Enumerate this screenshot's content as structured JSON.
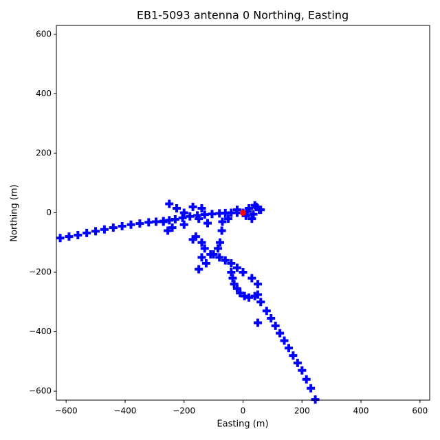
{
  "chart_data": {
    "type": "scatter",
    "title": "EB1-5093 antenna 0 Northing, Easting",
    "x_label": "Easting (m)",
    "y_label": "Northing (m)",
    "xlim": [
      -633,
      633
    ],
    "ylim": [
      -630,
      630
    ],
    "xticks": [
      {
        "value": -600,
        "label": "−600"
      },
      {
        "value": -400,
        "label": "−400"
      },
      {
        "value": -200,
        "label": "−200"
      },
      0,
      200,
      400,
      600
    ],
    "yticks": [
      {
        "value": -600,
        "label": "−600"
      },
      {
        "value": -400,
        "label": "−400"
      },
      {
        "value": -200,
        "label": "−200"
      },
      0,
      200,
      400,
      600
    ],
    "grid": false,
    "series": [
      {
        "color": "#0000ff",
        "marker": "+",
        "x": [
          -620,
          -590,
          -560,
          -530,
          -500,
          -470,
          -440,
          -410,
          -380,
          -350,
          -320,
          -295,
          -270,
          -250,
          -230,
          -205,
          -180,
          -155,
          -130,
          -105,
          -80,
          -60,
          -40,
          -20,
          0,
          20,
          40,
          55,
          30,
          10,
          -20,
          35,
          45,
          15,
          -250,
          -225,
          -200,
          -170,
          -140,
          -150,
          -120,
          -200,
          -240,
          -255,
          -270,
          -70,
          -72,
          -78,
          -85,
          -100,
          -125,
          -150,
          -140,
          -130,
          -170,
          -160,
          -140,
          -110,
          -80,
          -60,
          -40,
          -20,
          0,
          30,
          50,
          -40,
          -35,
          -30,
          -20,
          -10,
          5,
          20,
          40,
          50,
          60,
          80,
          95,
          110,
          125,
          140,
          155,
          170,
          185,
          200,
          215,
          230,
          245,
          50,
          -50,
          60
        ],
        "y": [
          -85,
          -80,
          -75,
          -68,
          -62,
          -56,
          -50,
          -45,
          -40,
          -36,
          -32,
          -30,
          -28,
          -25,
          -22,
          -17,
          -12,
          -9,
          -6,
          -4,
          -2,
          -1,
          0,
          0,
          0,
          15,
          25,
          10,
          -20,
          -10,
          10,
          -5,
          20,
          5,
          30,
          15,
          0,
          20,
          15,
          -20,
          -35,
          -40,
          -50,
          -60,
          -30,
          -30,
          -60,
          -100,
          -120,
          -140,
          -170,
          -190,
          -150,
          -120,
          -90,
          -80,
          -100,
          -140,
          -150,
          -160,
          -170,
          -185,
          -200,
          -220,
          -240,
          -200,
          -220,
          -240,
          -255,
          -270,
          -280,
          -285,
          -280,
          -275,
          -300,
          -330,
          -355,
          -380,
          -405,
          -430,
          -455,
          -480,
          -505,
          -530,
          -560,
          -590,
          -628,
          -370,
          -20,
          10
        ]
      },
      {
        "color": "#ff0000",
        "marker": "o",
        "x": [
          0
        ],
        "y": [
          0
        ]
      }
    ]
  }
}
